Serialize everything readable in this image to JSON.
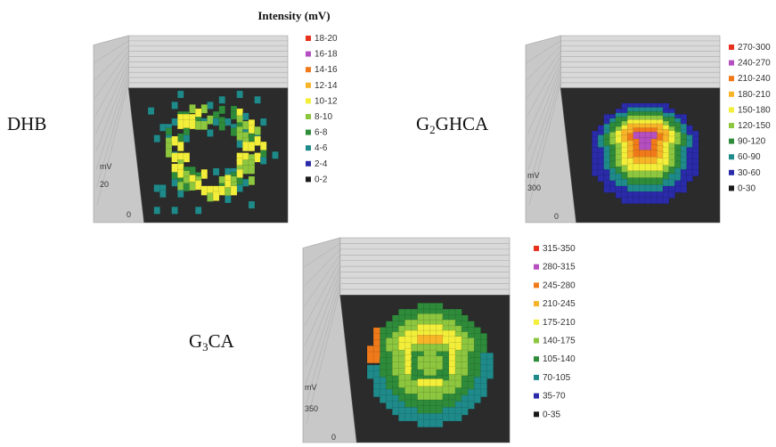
{
  "figure_title": "Intensity (mV)",
  "chart_data": [
    {
      "type": "heatmap",
      "sample": "DHB",
      "sample_parts": [
        {
          "t": "DHB",
          "sub": false
        }
      ],
      "z_unit": "mV",
      "z_tick_labels": [
        "20",
        "0"
      ],
      "legend": [
        {
          "label": "18-20",
          "color": "#e8321e"
        },
        {
          "label": "16-18",
          "color": "#b54fc0"
        },
        {
          "label": "14-16",
          "color": "#f07a1a"
        },
        {
          "label": "12-14",
          "color": "#f7b428"
        },
        {
          "label": "10-12",
          "color": "#f3ee3a"
        },
        {
          "label": "8-10",
          "color": "#8dc63f"
        },
        {
          "label": "6-8",
          "color": "#2e8b3a"
        },
        {
          "label": "4-6",
          "color": "#1f8a8a"
        },
        {
          "label": "2-4",
          "color": "#2a2ba8"
        },
        {
          "label": "0-2",
          "color": "#1a1a1a"
        }
      ],
      "pattern": "ring-sparse"
    },
    {
      "type": "heatmap",
      "sample": "G2GHCA",
      "sample_parts": [
        {
          "t": "G",
          "sub": false
        },
        {
          "t": "2",
          "sub": true
        },
        {
          "t": "GHCA",
          "sub": false
        }
      ],
      "z_unit": "mV",
      "z_tick_labels": [
        "300",
        "0"
      ],
      "legend": [
        {
          "label": "270-300",
          "color": "#e8321e"
        },
        {
          "label": "240-270",
          "color": "#b54fc0"
        },
        {
          "label": "210-240",
          "color": "#f07a1a"
        },
        {
          "label": "180-210",
          "color": "#f7b428"
        },
        {
          "label": "150-180",
          "color": "#f3ee3a"
        },
        {
          "label": "120-150",
          "color": "#8dc63f"
        },
        {
          "label": "90-120",
          "color": "#2e8b3a"
        },
        {
          "label": "60-90",
          "color": "#1f8a8a"
        },
        {
          "label": "30-60",
          "color": "#2a2ba8"
        },
        {
          "label": "0-30",
          "color": "#1a1a1a"
        }
      ],
      "pattern": "dome-high"
    },
    {
      "type": "heatmap",
      "sample": "G3CA",
      "sample_parts": [
        {
          "t": "G",
          "sub": false
        },
        {
          "t": "3",
          "sub": true
        },
        {
          "t": "CA",
          "sub": false
        }
      ],
      "z_unit": "mV",
      "z_tick_labels": [
        "350",
        "0"
      ],
      "legend": [
        {
          "label": "315-350",
          "color": "#e8321e"
        },
        {
          "label": "280-315",
          "color": "#b54fc0"
        },
        {
          "label": "245-280",
          "color": "#f07a1a"
        },
        {
          "label": "210-245",
          "color": "#f7b428"
        },
        {
          "label": "175-210",
          "color": "#f3ee3a"
        },
        {
          "label": "140-175",
          "color": "#8dc63f"
        },
        {
          "label": "105-140",
          "color": "#2e8b3a"
        },
        {
          "label": "70-105",
          "color": "#1f8a8a"
        },
        {
          "label": "35-70",
          "color": "#2a2ba8"
        },
        {
          "label": "0-35",
          "color": "#1a1a1a"
        }
      ],
      "pattern": "dome-mid"
    }
  ]
}
